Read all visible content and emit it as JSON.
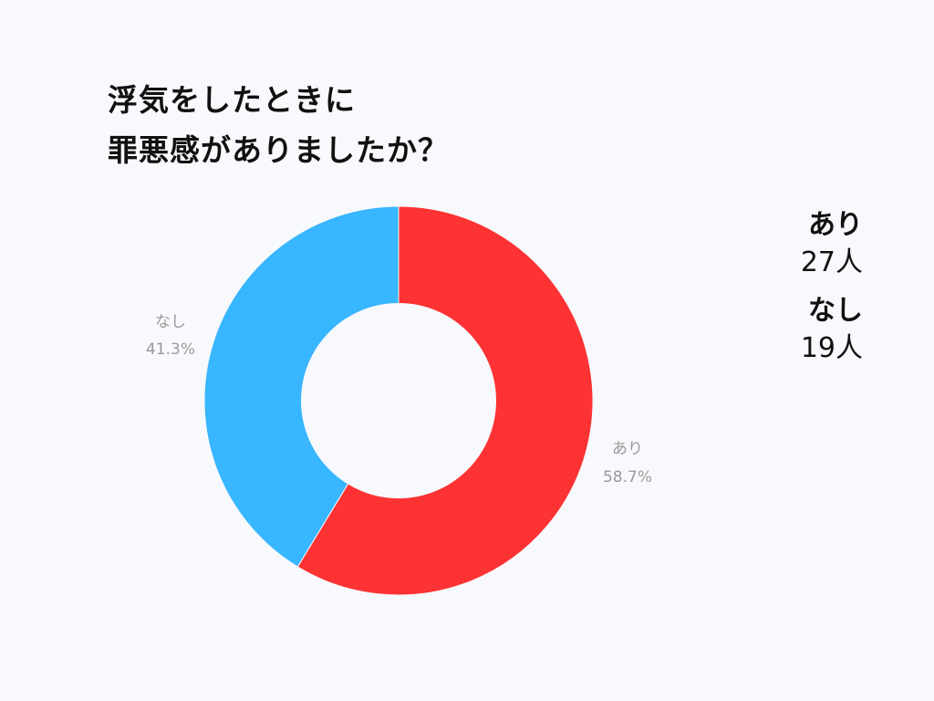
{
  "title_lines": [
    "浮気をしたときに",
    "罪悪感がありましたか？"
  ],
  "colors": {
    "background": "#f7f9fc",
    "series": [
      "#fd3233",
      "#38b6ff"
    ],
    "label": "#9a9a9a"
  },
  "legend": [
    {
      "name": "あり",
      "count": "27人"
    },
    {
      "name": "なし",
      "count": "19人"
    }
  ],
  "chart_data": {
    "type": "pie",
    "donut": true,
    "title": "浮気をしたときに罪悪感がありましたか？",
    "categories": [
      "あり",
      "なし"
    ],
    "values": [
      58.7,
      41.3
    ],
    "counts": [
      27,
      19
    ],
    "slice_labels": [
      {
        "name": "あり",
        "percent": "58.7%"
      },
      {
        "name": "なし",
        "percent": "41.3%"
      }
    ],
    "legend_position": "right"
  }
}
